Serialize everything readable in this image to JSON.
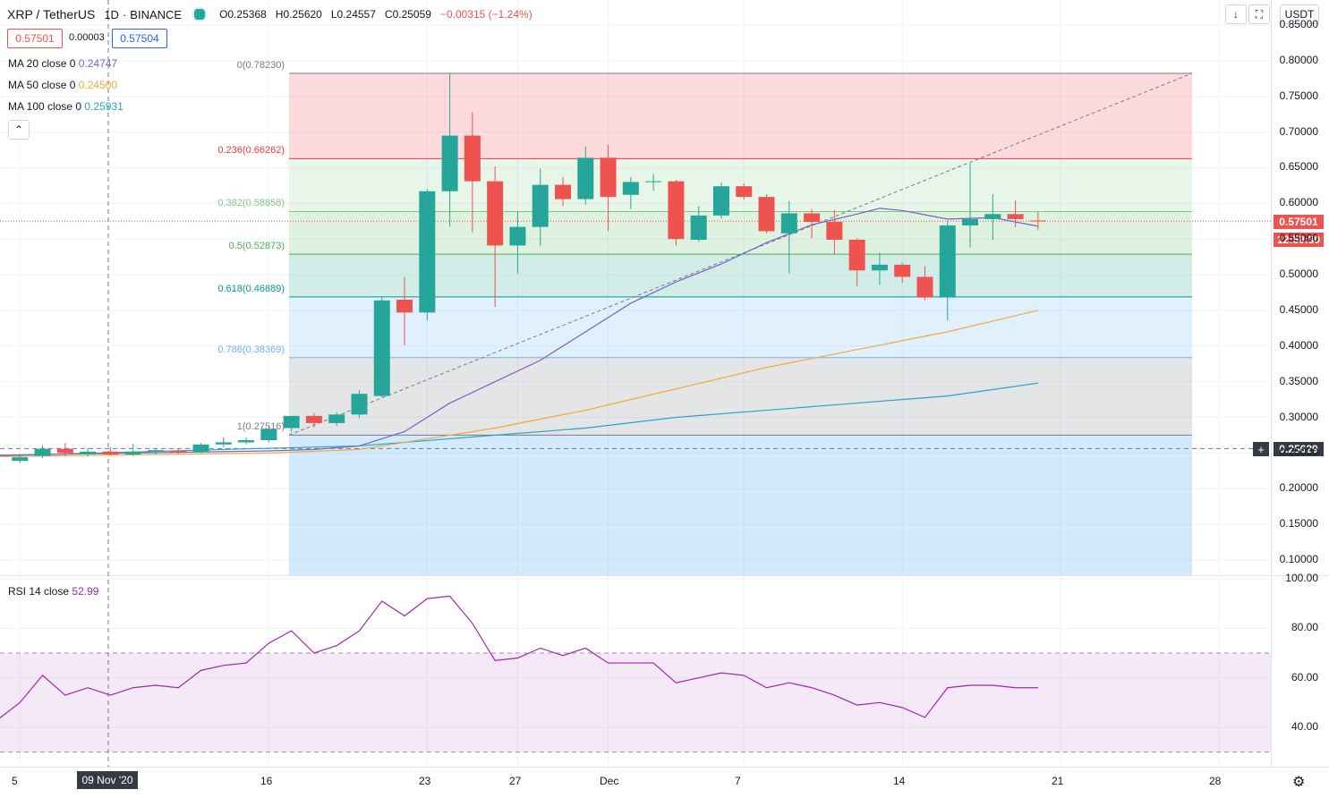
{
  "header": {
    "symbol": "XRP / TetherUS",
    "interval": "1D",
    "exchange": "BINANCE",
    "ohlc": {
      "O": "O0.25368",
      "H": "H0.25620",
      "L": "L0.24557",
      "C": "C0.25059",
      "change": "−0.00315 (−1.24%)"
    }
  },
  "quote": {
    "bid": "0.57501",
    "spread": "0.00003",
    "ask": "0.57504"
  },
  "indicators": [
    {
      "label": "MA 20 close 0",
      "value": "0.24747",
      "color": "#7b61c9"
    },
    {
      "label": "MA 50 close 0",
      "value": "0.24500",
      "color": "#f2a93b"
    },
    {
      "label": "MA 100 close 0",
      "value": "0.25931",
      "color": "#26a5c9"
    }
  ],
  "currency": "USDT",
  "rsi": {
    "label": "RSI 14 close",
    "value": "52.99"
  },
  "price_axis": [
    "0.85000",
    "0.80000",
    "0.75000",
    "0.70000",
    "0.65000",
    "0.60000",
    "0.55000",
    "0.50000",
    "0.45000",
    "0.40000",
    "0.35000",
    "0.30000",
    "0.25000",
    "0.20000",
    "0.15000",
    "0.10000"
  ],
  "rsi_axis": [
    "100.00",
    "80.00",
    "60.00",
    "40.00"
  ],
  "price_tag": "0.57501",
  "countdown": "12:59:30",
  "crosshair_price": "0.25629",
  "crosshair_date": "09 Nov '20",
  "x_labels": [
    "5",
    "16",
    "23",
    "27",
    "Dec",
    "7",
    "14",
    "21",
    "28"
  ],
  "fib_levels": [
    {
      "label": "0(0.78230)",
      "value": 0.7823,
      "color": "#787b86"
    },
    {
      "label": "0.236(0.66262)",
      "value": 0.66262,
      "color": "#f23645"
    },
    {
      "label": "0.382(0.58858)",
      "value": 0.58858,
      "color": "#81c784"
    },
    {
      "label": "0.5(0.52873)",
      "value": 0.52873,
      "color": "#4caf50"
    },
    {
      "label": "0.618(0.46889)",
      "value": 0.46889,
      "color": "#089981"
    },
    {
      "label": "0.786(0.38369)",
      "value": 0.38369,
      "color": "#64b5f6"
    },
    {
      "label": "1(0.27516)",
      "value": 0.27516,
      "color": "#787b86"
    }
  ],
  "chart_data": {
    "type": "candlestick",
    "up_color": "#26a69a",
    "down_color": "#ef5350",
    "candles": [
      {
        "d": 1,
        "o": 0.239,
        "h": 0.247,
        "l": 0.236,
        "c": 0.244
      },
      {
        "d": 2,
        "o": 0.246,
        "h": 0.261,
        "l": 0.243,
        "c": 0.256
      },
      {
        "d": 3,
        "o": 0.256,
        "h": 0.264,
        "l": 0.246,
        "c": 0.25
      },
      {
        "d": 4,
        "o": 0.248,
        "h": 0.257,
        "l": 0.245,
        "c": 0.252
      },
      {
        "d": 5,
        "o": 0.252,
        "h": 0.258,
        "l": 0.246,
        "c": 0.248
      },
      {
        "d": 6,
        "o": 0.248,
        "h": 0.263,
        "l": 0.246,
        "c": 0.252
      },
      {
        "d": 7,
        "o": 0.252,
        "h": 0.256,
        "l": 0.248,
        "c": 0.254
      },
      {
        "d": 8,
        "o": 0.253,
        "h": 0.256,
        "l": 0.249,
        "c": 0.251
      },
      {
        "d": 9,
        "o": 0.251,
        "h": 0.264,
        "l": 0.25,
        "c": 0.262
      },
      {
        "d": 10,
        "o": 0.262,
        "h": 0.272,
        "l": 0.258,
        "c": 0.265
      },
      {
        "d": 11,
        "o": 0.265,
        "h": 0.272,
        "l": 0.262,
        "c": 0.268
      },
      {
        "d": 12,
        "o": 0.268,
        "h": 0.287,
        "l": 0.265,
        "c": 0.284
      },
      {
        "d": 13,
        "o": 0.285,
        "h": 0.302,
        "l": 0.28,
        "c": 0.302
      },
      {
        "d": 14,
        "o": 0.302,
        "h": 0.306,
        "l": 0.286,
        "c": 0.292
      },
      {
        "d": 15,
        "o": 0.292,
        "h": 0.307,
        "l": 0.288,
        "c": 0.304
      },
      {
        "d": 16,
        "o": 0.304,
        "h": 0.338,
        "l": 0.299,
        "c": 0.333
      },
      {
        "d": 17,
        "o": 0.33,
        "h": 0.47,
        "l": 0.328,
        "c": 0.464
      },
      {
        "d": 18,
        "o": 0.465,
        "h": 0.497,
        "l": 0.401,
        "c": 0.447
      },
      {
        "d": 19,
        "o": 0.447,
        "h": 0.62,
        "l": 0.436,
        "c": 0.617
      },
      {
        "d": 20,
        "o": 0.617,
        "h": 0.782,
        "l": 0.567,
        "c": 0.695
      },
      {
        "d": 21,
        "o": 0.695,
        "h": 0.728,
        "l": 0.56,
        "c": 0.631
      },
      {
        "d": 22,
        "o": 0.631,
        "h": 0.652,
        "l": 0.455,
        "c": 0.541
      },
      {
        "d": 23,
        "o": 0.541,
        "h": 0.589,
        "l": 0.502,
        "c": 0.567
      },
      {
        "d": 24,
        "o": 0.567,
        "h": 0.649,
        "l": 0.54,
        "c": 0.626
      },
      {
        "d": 25,
        "o": 0.626,
        "h": 0.637,
        "l": 0.596,
        "c": 0.606
      },
      {
        "d": 26,
        "o": 0.606,
        "h": 0.68,
        "l": 0.598,
        "c": 0.664
      },
      {
        "d": 27,
        "o": 0.664,
        "h": 0.682,
        "l": 0.561,
        "c": 0.609
      },
      {
        "d": 28,
        "o": 0.612,
        "h": 0.637,
        "l": 0.592,
        "c": 0.63
      },
      {
        "d": 29,
        "o": 0.63,
        "h": 0.641,
        "l": 0.618,
        "c": 0.631
      },
      {
        "d": 30,
        "o": 0.631,
        "h": 0.633,
        "l": 0.541,
        "c": 0.55
      },
      {
        "d": 31,
        "o": 0.549,
        "h": 0.596,
        "l": 0.546,
        "c": 0.583
      },
      {
        "d": 32,
        "o": 0.583,
        "h": 0.629,
        "l": 0.579,
        "c": 0.624
      },
      {
        "d": 33,
        "o": 0.624,
        "h": 0.628,
        "l": 0.605,
        "c": 0.609
      },
      {
        "d": 34,
        "o": 0.609,
        "h": 0.613,
        "l": 0.558,
        "c": 0.561
      },
      {
        "d": 35,
        "o": 0.558,
        "h": 0.603,
        "l": 0.502,
        "c": 0.586
      },
      {
        "d": 36,
        "o": 0.586,
        "h": 0.592,
        "l": 0.551,
        "c": 0.574
      },
      {
        "d": 37,
        "o": 0.574,
        "h": 0.591,
        "l": 0.528,
        "c": 0.549
      },
      {
        "d": 38,
        "o": 0.549,
        "h": 0.551,
        "l": 0.484,
        "c": 0.506
      },
      {
        "d": 39,
        "o": 0.506,
        "h": 0.531,
        "l": 0.486,
        "c": 0.514
      },
      {
        "d": 40,
        "o": 0.514,
        "h": 0.517,
        "l": 0.489,
        "c": 0.497
      },
      {
        "d": 41,
        "o": 0.497,
        "h": 0.512,
        "l": 0.464,
        "c": 0.468
      },
      {
        "d": 42,
        "o": 0.468,
        "h": 0.576,
        "l": 0.436,
        "c": 0.569
      },
      {
        "d": 43,
        "o": 0.569,
        "h": 0.656,
        "l": 0.538,
        "c": 0.578
      },
      {
        "d": 44,
        "o": 0.578,
        "h": 0.613,
        "l": 0.549,
        "c": 0.585
      },
      {
        "d": 45,
        "o": 0.585,
        "h": 0.604,
        "l": 0.567,
        "c": 0.578
      },
      {
        "d": 46,
        "o": 0.576,
        "h": 0.588,
        "l": 0.563,
        "c": 0.575
      }
    ],
    "ma20": [
      [
        12,
        0.253
      ],
      [
        14,
        0.255
      ],
      [
        16,
        0.26
      ],
      [
        18,
        0.28
      ],
      [
        20,
        0.32
      ],
      [
        22,
        0.35
      ],
      [
        24,
        0.38
      ],
      [
        26,
        0.42
      ],
      [
        28,
        0.46
      ],
      [
        30,
        0.49
      ],
      [
        32,
        0.515
      ],
      [
        34,
        0.545
      ],
      [
        36,
        0.57
      ],
      [
        38,
        0.585
      ],
      [
        39,
        0.593
      ],
      [
        40,
        0.59
      ],
      [
        42,
        0.578
      ],
      [
        44,
        0.58
      ],
      [
        46,
        0.568
      ]
    ],
    "ma50": [
      [
        12,
        0.25
      ],
      [
        16,
        0.255
      ],
      [
        20,
        0.275
      ],
      [
        22,
        0.285
      ],
      [
        26,
        0.31
      ],
      [
        30,
        0.34
      ],
      [
        34,
        0.37
      ],
      [
        38,
        0.395
      ],
      [
        42,
        0.42
      ],
      [
        46,
        0.45
      ]
    ],
    "ma100": [
      [
        10,
        0.255
      ],
      [
        16,
        0.26
      ],
      [
        20,
        0.27
      ],
      [
        26,
        0.285
      ],
      [
        30,
        0.3
      ],
      [
        34,
        0.31
      ],
      [
        38,
        0.32
      ],
      [
        42,
        0.33
      ],
      [
        46,
        0.348
      ]
    ],
    "rsi": [
      [
        0,
        43
      ],
      [
        1,
        50
      ],
      [
        2,
        61
      ],
      [
        3,
        53
      ],
      [
        4,
        56
      ],
      [
        5,
        53
      ],
      [
        6,
        56
      ],
      [
        7,
        57
      ],
      [
        8,
        56
      ],
      [
        9,
        63
      ],
      [
        10,
        65
      ],
      [
        11,
        66
      ],
      [
        12,
        74
      ],
      [
        13,
        79
      ],
      [
        14,
        70
      ],
      [
        15,
        73
      ],
      [
        16,
        79
      ],
      [
        17,
        91
      ],
      [
        18,
        85
      ],
      [
        19,
        92
      ],
      [
        20,
        93
      ],
      [
        21,
        82
      ],
      [
        22,
        67
      ],
      [
        23,
        68
      ],
      [
        24,
        72
      ],
      [
        25,
        69
      ],
      [
        26,
        72
      ],
      [
        27,
        66
      ],
      [
        28,
        66
      ],
      [
        29,
        66
      ],
      [
        30,
        58
      ],
      [
        31,
        60
      ],
      [
        32,
        62
      ],
      [
        33,
        61
      ],
      [
        34,
        56
      ],
      [
        35,
        58
      ],
      [
        36,
        56
      ],
      [
        37,
        53
      ],
      [
        38,
        49
      ],
      [
        39,
        50
      ],
      [
        40,
        48
      ],
      [
        41,
        44
      ],
      [
        42,
        56
      ],
      [
        43,
        57
      ],
      [
        44,
        57
      ],
      [
        45,
        56
      ],
      [
        46,
        56
      ]
    ]
  }
}
